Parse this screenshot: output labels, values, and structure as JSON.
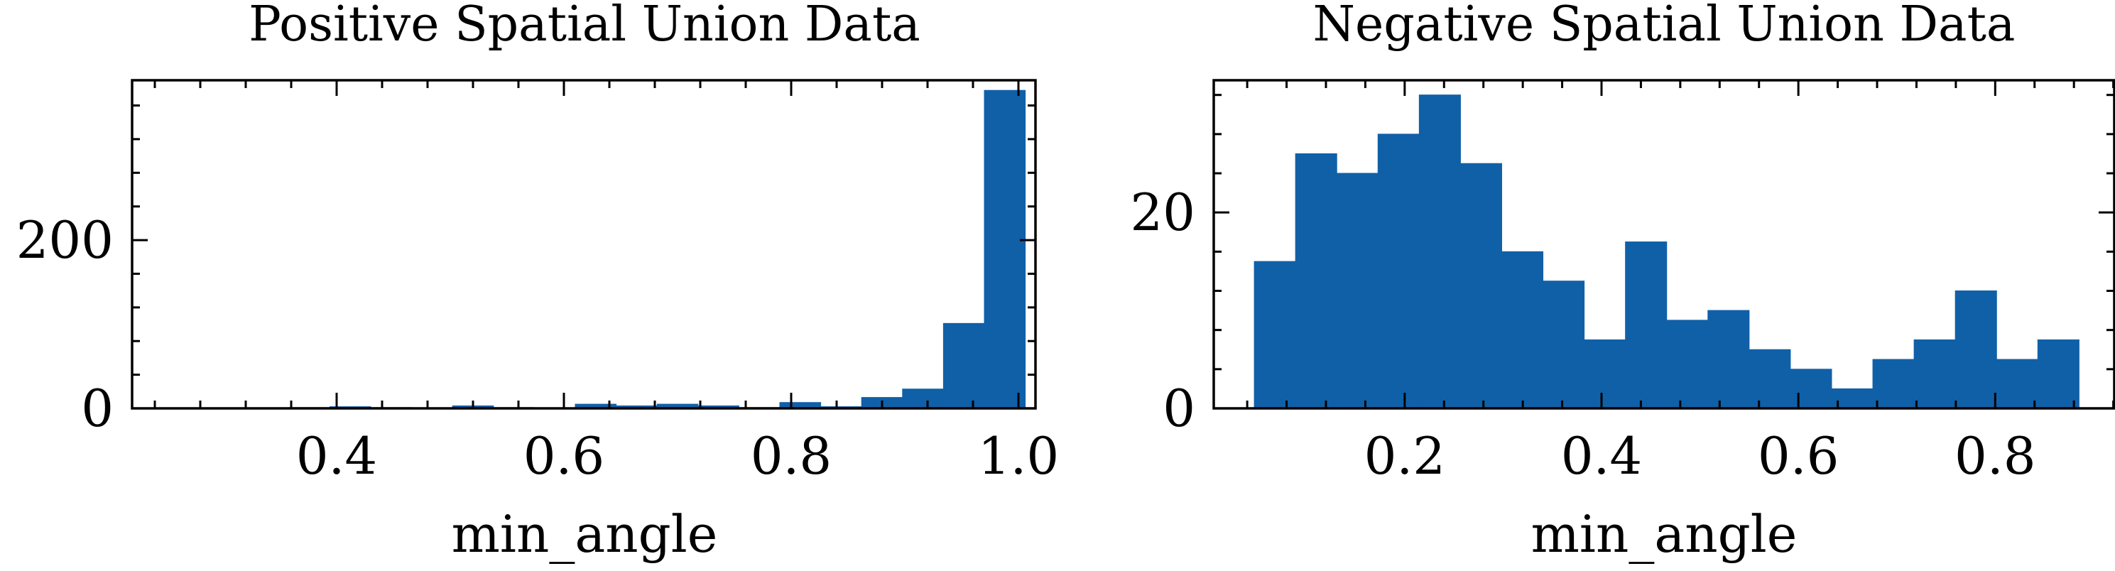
{
  "chart_data": [
    {
      "type": "bar",
      "title": "Positive Spatial Union Data",
      "xlabel": "min_angle",
      "ylabel": "",
      "xlim": [
        0.22,
        1.015
      ],
      "ylim": [
        0,
        390
      ],
      "xticks": [
        0.4,
        0.6,
        0.8,
        1.0
      ],
      "xtick_labels": [
        "0.4",
        "0.6",
        "0.8",
        "1.0"
      ],
      "yticks": [
        0,
        200
      ],
      "ytick_labels": [
        "0",
        "200"
      ],
      "bin_edges": [
        0.25,
        0.286,
        0.322,
        0.358,
        0.394,
        0.43,
        0.466,
        0.502,
        0.538,
        0.574,
        0.61,
        0.646,
        0.682,
        0.718,
        0.754,
        0.79,
        0.826,
        0.862,
        0.898,
        0.934,
        0.97,
        1.006
      ],
      "values": [
        0,
        0,
        0,
        1,
        2,
        1,
        0,
        3,
        1,
        0,
        5,
        3,
        5,
        3,
        1,
        7,
        2,
        13,
        23,
        101,
        378
      ]
    },
    {
      "type": "bar",
      "title": "Negative Spatial Union Data",
      "xlabel": "min_angle",
      "ylabel": "",
      "xlim": [
        0.006,
        0.921
      ],
      "ylim": [
        0,
        33.5
      ],
      "xticks": [
        0.2,
        0.4,
        0.6,
        0.8
      ],
      "xtick_labels": [
        "0.2",
        "0.4",
        "0.6",
        "0.8"
      ],
      "yticks": [
        0,
        20
      ],
      "ytick_labels": [
        "0",
        "20"
      ],
      "bin_edges": [
        0.0472,
        0.0891,
        0.131,
        0.1729,
        0.2148,
        0.2567,
        0.2986,
        0.3405,
        0.3824,
        0.4243,
        0.4662,
        0.5081,
        0.55,
        0.5919,
        0.6338,
        0.6757,
        0.7176,
        0.7595,
        0.8014,
        0.8433,
        0.8852
      ],
      "values": [
        15,
        26,
        24,
        28,
        32,
        25,
        16,
        13,
        7,
        17,
        9,
        10,
        6,
        4,
        2,
        5,
        7,
        12,
        5,
        7
      ]
    }
  ]
}
